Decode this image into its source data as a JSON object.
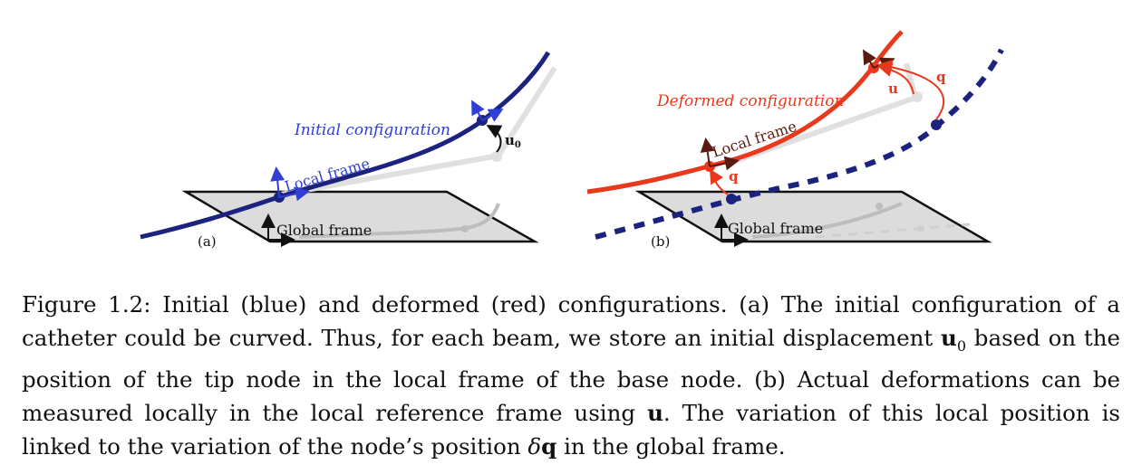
{
  "panel_a": {
    "tag": "(a)",
    "initial_configuration": "Initial configuration",
    "local_frame": "Local frame",
    "global_frame": "Global frame",
    "u0_symbol": "u",
    "u0_subscript": "0"
  },
  "panel_b": {
    "tag": "(b)",
    "deformed_configuration": "Deformed configuration",
    "local_frame": "Local frame",
    "global_frame": "Global frame",
    "q_symbol": "q",
    "u_symbol": "u"
  },
  "caption": {
    "prefix": "Figure 1.2: Initial (blue) and deformed (red) configurations. (a) The initial configuration of a catheter could be curved. Thus, for each beam, we store an initial displacement ",
    "u0_bold": "u",
    "u0_sub": "0",
    "middle1": " based on the position of the tip node in the local frame of the base node. (b) Actual deformations can be measured locally in the local reference frame using ",
    "u_bold": "u",
    "middle2": ". The variation of this local position is linked to the variation of the node’s position ",
    "delta": "δ",
    "q_bold": "q",
    "suffix": " in the global frame."
  },
  "colors": {
    "blue": "#1b237e",
    "blue_light": "#2f3fd6",
    "red": "#e8391d",
    "gray_plane": "#dcdcdc",
    "gray_curve": "#bdbdbd"
  }
}
